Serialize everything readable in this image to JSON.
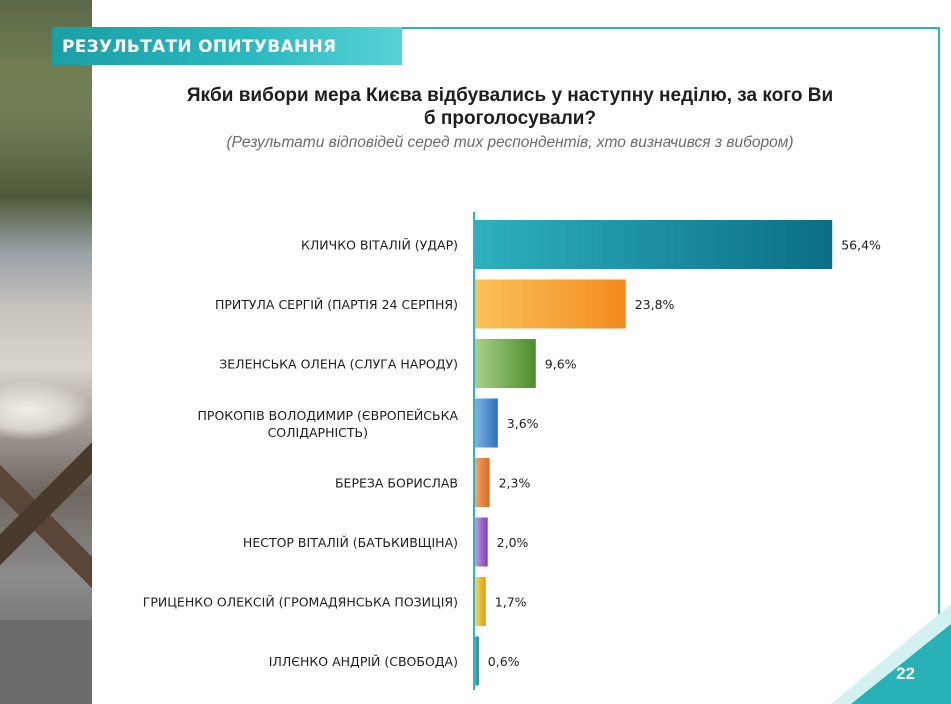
{
  "header": {
    "title": "РЕЗУЛЬТАТИ ОПИТУВАННЯ"
  },
  "question": "Якби вибори мера Києва відбувались у наступну неділю, за кого Ви б проголосували?",
  "subtitle": "(Результати відповідей серед тих респондентів, хто визначився з вибором)",
  "page_number": "22",
  "colors": {
    "accent": "#29b8bf",
    "axis": "#2fb5ba"
  },
  "chart_data": {
    "type": "bar",
    "orientation": "horizontal",
    "title": "Якби вибори мера Києва відбувались у наступну неділю, за кого Ви б проголосували?",
    "subtitle": "(Результати відповідей серед тих респондентів, хто визначився з вибором)",
    "categories": [
      "КЛИЧКО ВІТАЛІЙ (УДАР)",
      "ПРИТУЛА СЕРГІЙ (ПАРТІЯ 24 СЕРПНЯ)",
      "ЗЕЛЕНСЬКА ОЛЕНА (СЛУГА НАРОДУ)",
      "ПРОКОПІВ ВОЛОДИМИР (ЄВРОПЕЙСЬКА СОЛІДАРНІСТЬ)",
      "БЕРЕЗА БОРИСЛАВ",
      "НЕСТОР ВІТАЛІЙ (БАТЬКИВЩІНА)",
      "ГРИЦЕНКО ОЛЕКСІЙ (ГРОМАДЯНСЬКА ПОЗИЦІЯ)",
      "ІЛЛЄНКО АНДРІЙ (СВОБОДА)"
    ],
    "values": [
      56.4,
      23.8,
      9.6,
      3.6,
      2.3,
      2.0,
      1.7,
      0.6
    ],
    "value_labels": [
      "56,4%",
      "23,8%",
      "9,6%",
      "3,6%",
      "2,3%",
      "2,0%",
      "1,7%",
      "0,6%"
    ],
    "bar_colors": [
      [
        "#2db0bf",
        "#0b6e86"
      ],
      [
        "#fbc35a",
        "#f28a1e"
      ],
      [
        "#a8d18a",
        "#4d8d2a"
      ],
      [
        "#7fb2e2",
        "#2f6fb5"
      ],
      [
        "#f2a66b",
        "#d86a1f"
      ],
      [
        "#c59ae3",
        "#7b3fb6"
      ],
      [
        "#f7d46a",
        "#d7a20a"
      ],
      [
        "#4bb9c4",
        "#157f8e"
      ]
    ],
    "xlim": [
      0,
      60
    ],
    "grid": false,
    "legend": "none"
  }
}
